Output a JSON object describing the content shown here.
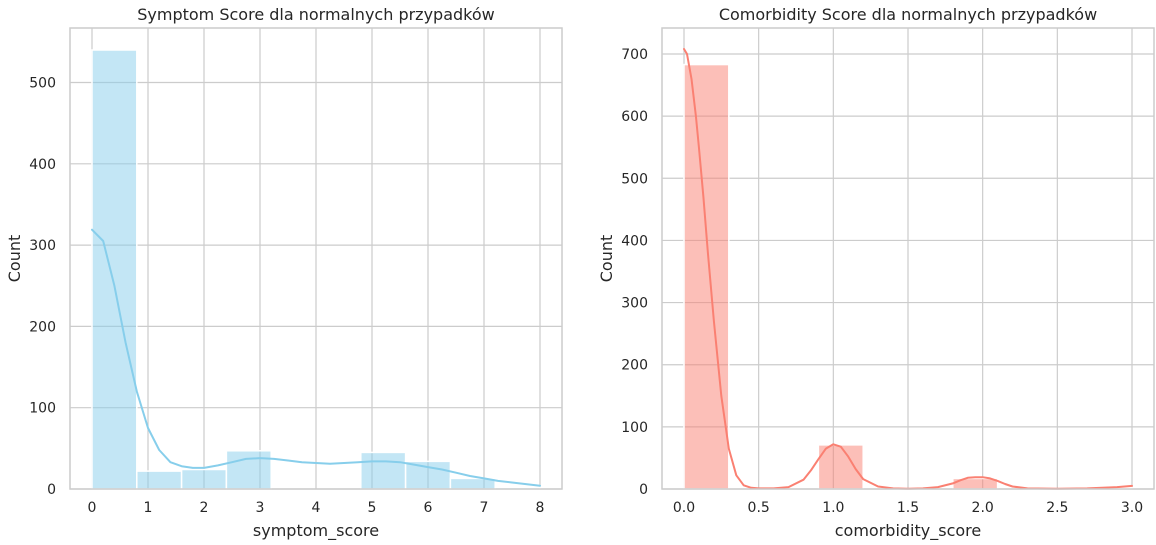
{
  "chart_data": [
    {
      "type": "histogram",
      "title": "Symptom Score dla normalnych przypadków",
      "xlabel": "symptom_score",
      "ylabel": "Count",
      "xlim": [
        -0.4,
        8.4
      ],
      "ylim": [
        0,
        567
      ],
      "xticks": [
        0,
        1,
        2,
        3,
        4,
        5,
        6,
        7,
        8
      ],
      "yticks": [
        0,
        100,
        200,
        300,
        400,
        500
      ],
      "grid": true,
      "bar_color": "#87ceeb",
      "kde_color": "#87ceeb",
      "bin_edges": [
        0,
        0.8,
        1.6,
        2.4,
        3.2,
        4.0,
        4.8,
        5.6,
        6.4,
        7.2,
        8.0
      ],
      "counts": [
        540,
        22,
        24,
        47,
        0,
        0,
        45,
        34,
        13,
        2
      ],
      "kde": {
        "x": [
          0,
          0.2,
          0.4,
          0.6,
          0.8,
          1.0,
          1.2,
          1.4,
          1.6,
          1.8,
          2.0,
          2.25,
          2.5,
          2.75,
          3.0,
          3.25,
          3.5,
          3.75,
          4.0,
          4.25,
          4.5,
          4.75,
          5.0,
          5.25,
          5.5,
          5.75,
          6.0,
          6.25,
          6.5,
          6.75,
          7.0,
          7.25,
          7.5,
          7.75,
          8.0
        ],
        "y": [
          319,
          305,
          250,
          180,
          120,
          75,
          48,
          33,
          28,
          26,
          26,
          29,
          33,
          37,
          38,
          37,
          35,
          33,
          32,
          31,
          32,
          33,
          34,
          34,
          33,
          30,
          27,
          24,
          20,
          16,
          13,
          10,
          8,
          6,
          4
        ]
      }
    },
    {
      "type": "histogram",
      "title": "Comorbidity Score dla normalnych przypadków",
      "xlabel": "comorbidity_score",
      "ylabel": "Count",
      "xlim": [
        -0.15,
        3.15
      ],
      "ylim": [
        0,
        740
      ],
      "xticks": [
        0.0,
        0.5,
        1.0,
        1.5,
        2.0,
        2.5,
        3.0
      ],
      "xtick_labels": [
        "0.0",
        "0.5",
        "1.0",
        "1.5",
        "2.0",
        "2.5",
        "3.0"
      ],
      "yticks": [
        0,
        100,
        200,
        300,
        400,
        500,
        600,
        700
      ],
      "grid": true,
      "bar_color": "#fa8072",
      "kde_color": "#fa8072",
      "bin_edges": [
        0,
        0.3,
        0.6,
        0.9,
        1.2,
        1.5,
        1.8,
        2.1,
        2.4,
        2.7,
        3.0
      ],
      "counts": [
        683,
        0,
        0,
        71,
        0,
        0,
        17,
        0,
        0,
        2
      ],
      "kde": {
        "x": [
          0,
          0.02,
          0.05,
          0.08,
          0.1,
          0.13,
          0.16,
          0.2,
          0.25,
          0.3,
          0.35,
          0.4,
          0.45,
          0.5,
          0.6,
          0.7,
          0.8,
          0.85,
          0.9,
          0.95,
          1.0,
          1.05,
          1.1,
          1.15,
          1.2,
          1.3,
          1.4,
          1.5,
          1.6,
          1.7,
          1.8,
          1.85,
          1.9,
          1.95,
          2.0,
          2.05,
          2.1,
          2.15,
          2.2,
          2.3,
          2.5,
          2.7,
          2.8,
          2.9,
          3.0
        ],
        "y": [
          708,
          700,
          660,
          600,
          550,
          470,
          380,
          270,
          150,
          65,
          22,
          6,
          2,
          1,
          1,
          3,
          15,
          30,
          48,
          65,
          72,
          68,
          52,
          32,
          16,
          4,
          1,
          0.5,
          1,
          3,
          9,
          14,
          18,
          19,
          19,
          17,
          13,
          8,
          4,
          1,
          0.5,
          1,
          2,
          3,
          5
        ]
      }
    }
  ]
}
